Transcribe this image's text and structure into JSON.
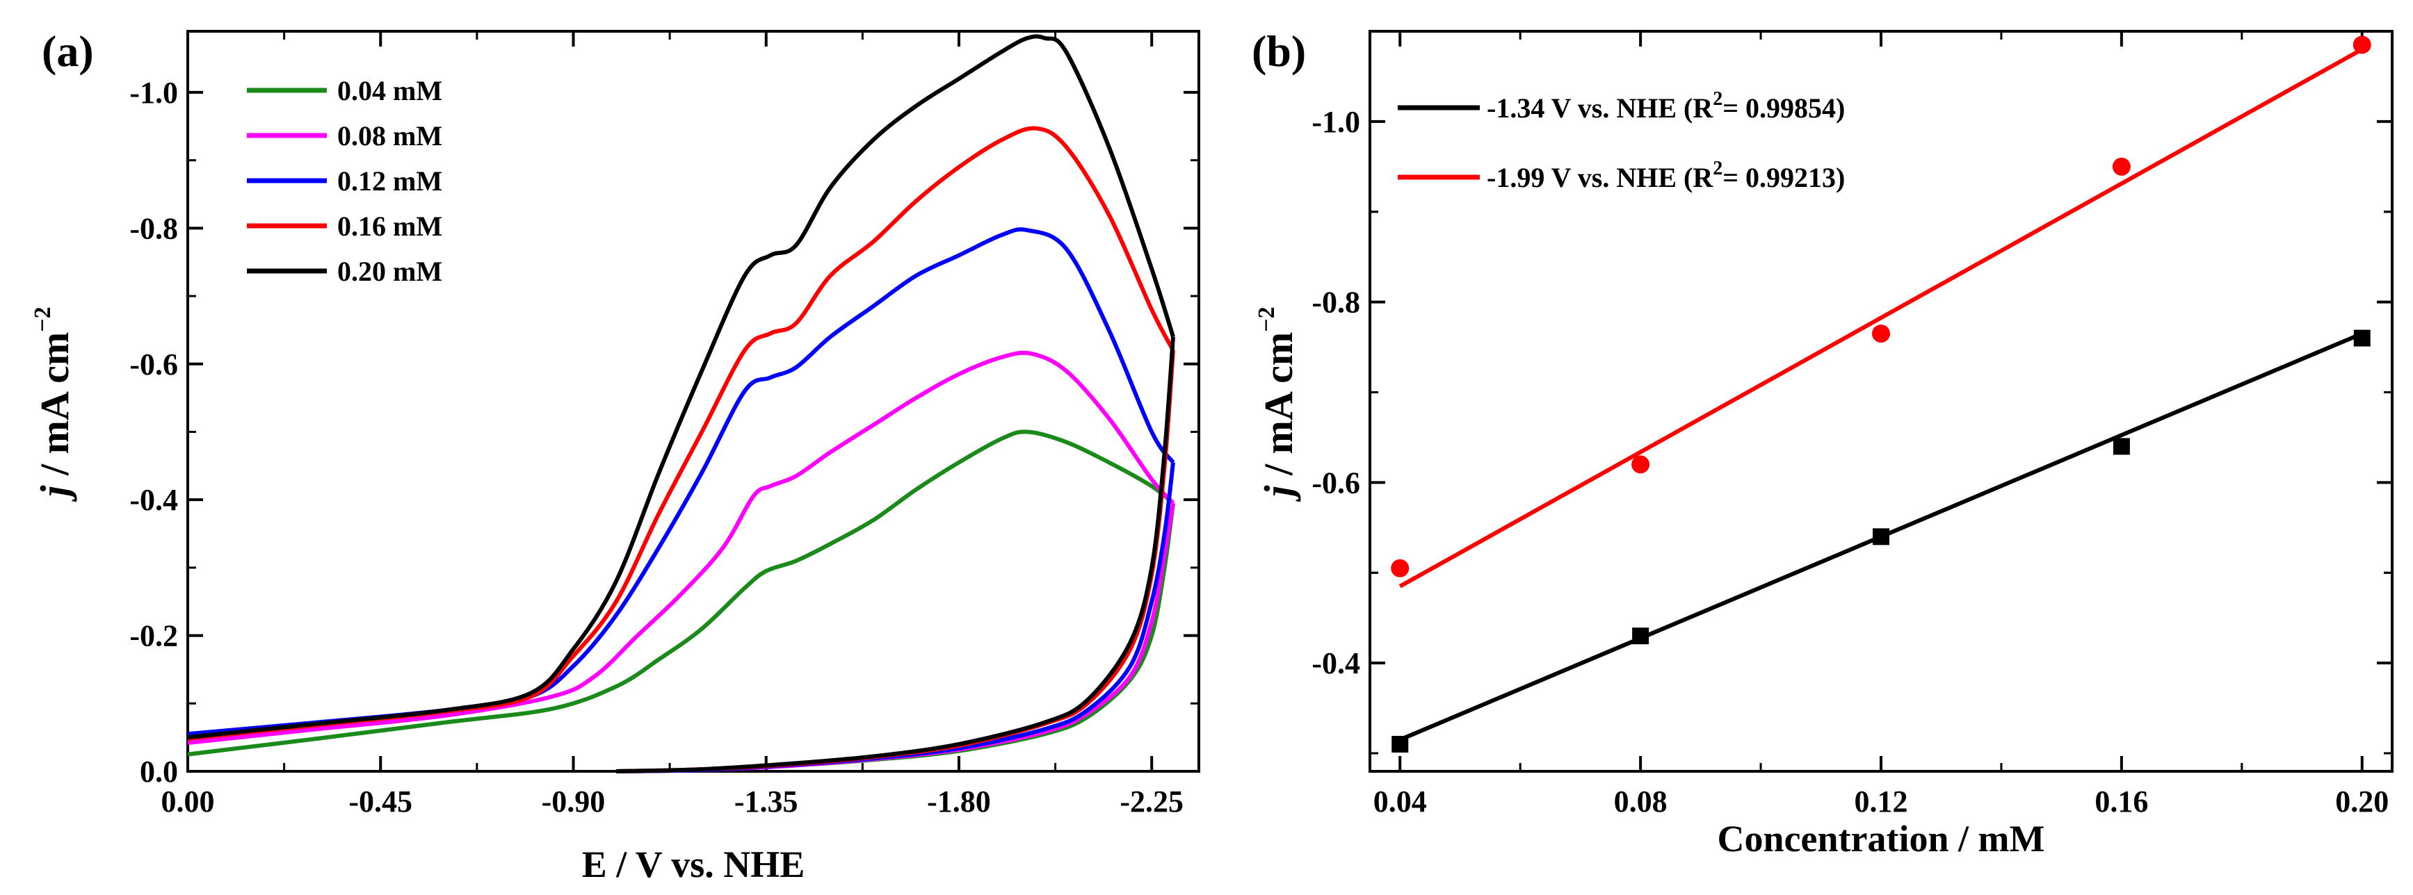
{
  "chart_data": [
    {
      "type": "line",
      "panel_label": "(a)",
      "xlabel": "E / V vs. NHE",
      "ylabel": {
        "italic": "j",
        "rest": " / mA cm",
        "sup": "−2"
      },
      "xlim": [
        0.0,
        -2.36
      ],
      "ylim": [
        0.0,
        -1.09
      ],
      "x_ticks": [
        "0.00",
        "-0.45",
        "-0.90",
        "-1.35",
        "-1.80",
        "-2.25"
      ],
      "y_ticks": [
        "0.0",
        "-0.2",
        "-0.4",
        "-0.6",
        "-0.8",
        "-1.0"
      ],
      "legend_position": "top-left",
      "series": [
        {
          "name": "0.04 mM",
          "color": "#1a8a1a",
          "forward": [
            [
              0,
              -0.025
            ],
            [
              -0.3,
              -0.048
            ],
            [
              -0.6,
              -0.072
            ],
            [
              -0.85,
              -0.092
            ],
            [
              -1.0,
              -0.125
            ],
            [
              -1.1,
              -0.165
            ],
            [
              -1.2,
              -0.21
            ],
            [
              -1.3,
              -0.27
            ],
            [
              -1.35,
              -0.295
            ],
            [
              -1.42,
              -0.31
            ],
            [
              -1.5,
              -0.335
            ],
            [
              -1.6,
              -0.37
            ],
            [
              -1.7,
              -0.415
            ],
            [
              -1.8,
              -0.455
            ],
            [
              -1.9,
              -0.49
            ],
            [
              -1.96,
              -0.5
            ],
            [
              -2.05,
              -0.485
            ],
            [
              -2.15,
              -0.455
            ],
            [
              -2.25,
              -0.42
            ],
            [
              -2.3,
              -0.395
            ]
          ],
          "reverse": [
            [
              -2.3,
              -0.395
            ],
            [
              -2.28,
              -0.3
            ],
            [
              -2.25,
              -0.2
            ],
            [
              -2.2,
              -0.135
            ],
            [
              -2.1,
              -0.08
            ],
            [
              -2.0,
              -0.055
            ],
            [
              -1.8,
              -0.03
            ],
            [
              -1.6,
              -0.017
            ],
            [
              -1.4,
              -0.008
            ],
            [
              -1.2,
              -0.002
            ],
            [
              -1.0,
              0.0
            ]
          ]
        },
        {
          "name": "0.08 mM",
          "color": "#ff00ff",
          "forward": [
            [
              0,
              -0.042
            ],
            [
              -0.3,
              -0.062
            ],
            [
              -0.6,
              -0.082
            ],
            [
              -0.85,
              -0.11
            ],
            [
              -0.95,
              -0.14
            ],
            [
              -1.05,
              -0.2
            ],
            [
              -1.15,
              -0.26
            ],
            [
              -1.25,
              -0.33
            ],
            [
              -1.32,
              -0.405
            ],
            [
              -1.36,
              -0.42
            ],
            [
              -1.42,
              -0.435
            ],
            [
              -1.5,
              -0.47
            ],
            [
              -1.6,
              -0.51
            ],
            [
              -1.7,
              -0.55
            ],
            [
              -1.8,
              -0.585
            ],
            [
              -1.9,
              -0.61
            ],
            [
              -1.97,
              -0.615
            ],
            [
              -2.05,
              -0.59
            ],
            [
              -2.15,
              -0.52
            ],
            [
              -2.25,
              -0.43
            ],
            [
              -2.3,
              -0.395
            ]
          ],
          "reverse": [
            [
              -2.3,
              -0.395
            ],
            [
              -2.28,
              -0.32
            ],
            [
              -2.25,
              -0.22
            ],
            [
              -2.2,
              -0.14
            ],
            [
              -2.1,
              -0.085
            ],
            [
              -2.0,
              -0.058
            ],
            [
              -1.8,
              -0.032
            ],
            [
              -1.6,
              -0.018
            ],
            [
              -1.4,
              -0.008
            ],
            [
              -1.2,
              -0.002
            ],
            [
              -1.0,
              0.0
            ]
          ]
        },
        {
          "name": "0.12 mM",
          "color": "#0000ff",
          "forward": [
            [
              0,
              -0.055
            ],
            [
              -0.3,
              -0.072
            ],
            [
              -0.6,
              -0.09
            ],
            [
              -0.8,
              -0.11
            ],
            [
              -0.9,
              -0.155
            ],
            [
              -1.0,
              -0.23
            ],
            [
              -1.1,
              -0.33
            ],
            [
              -1.2,
              -0.44
            ],
            [
              -1.3,
              -0.56
            ],
            [
              -1.36,
              -0.58
            ],
            [
              -1.42,
              -0.595
            ],
            [
              -1.5,
              -0.64
            ],
            [
              -1.6,
              -0.685
            ],
            [
              -1.7,
              -0.73
            ],
            [
              -1.8,
              -0.76
            ],
            [
              -1.9,
              -0.79
            ],
            [
              -1.96,
              -0.797
            ],
            [
              -2.05,
              -0.77
            ],
            [
              -2.15,
              -0.65
            ],
            [
              -2.25,
              -0.5
            ],
            [
              -2.3,
              -0.455
            ]
          ],
          "reverse": [
            [
              -2.3,
              -0.455
            ],
            [
              -2.28,
              -0.35
            ],
            [
              -2.25,
              -0.25
            ],
            [
              -2.2,
              -0.155
            ],
            [
              -2.1,
              -0.09
            ],
            [
              -2.0,
              -0.062
            ],
            [
              -1.8,
              -0.034
            ],
            [
              -1.6,
              -0.019
            ],
            [
              -1.4,
              -0.009
            ],
            [
              -1.2,
              -0.002
            ],
            [
              -1.0,
              0.0
            ]
          ]
        },
        {
          "name": "0.16 mM",
          "color": "#ff0000",
          "forward": [
            [
              0,
              -0.048
            ],
            [
              -0.3,
              -0.068
            ],
            [
              -0.6,
              -0.088
            ],
            [
              -0.8,
              -0.11
            ],
            [
              -0.9,
              -0.17
            ],
            [
              -1.0,
              -0.25
            ],
            [
              -1.1,
              -0.38
            ],
            [
              -1.2,
              -0.5
            ],
            [
              -1.3,
              -0.62
            ],
            [
              -1.36,
              -0.645
            ],
            [
              -1.42,
              -0.66
            ],
            [
              -1.5,
              -0.73
            ],
            [
              -1.6,
              -0.78
            ],
            [
              -1.7,
              -0.84
            ],
            [
              -1.8,
              -0.89
            ],
            [
              -1.9,
              -0.93
            ],
            [
              -1.98,
              -0.947
            ],
            [
              -2.05,
              -0.92
            ],
            [
              -2.15,
              -0.82
            ],
            [
              -2.25,
              -0.68
            ],
            [
              -2.3,
              -0.62
            ]
          ],
          "reverse": [
            [
              -2.3,
              -0.62
            ],
            [
              -2.28,
              -0.45
            ],
            [
              -2.25,
              -0.29
            ],
            [
              -2.2,
              -0.18
            ],
            [
              -2.1,
              -0.1
            ],
            [
              -2.0,
              -0.07
            ],
            [
              -1.8,
              -0.038
            ],
            [
              -1.6,
              -0.021
            ],
            [
              -1.4,
              -0.01
            ],
            [
              -1.2,
              -0.003
            ],
            [
              -1.0,
              0.0
            ]
          ]
        },
        {
          "name": "0.20 mM",
          "color": "#000000",
          "forward": [
            [
              0,
              -0.05
            ],
            [
              -0.3,
              -0.07
            ],
            [
              -0.6,
              -0.09
            ],
            [
              -0.8,
              -0.115
            ],
            [
              -0.9,
              -0.18
            ],
            [
              -1.0,
              -0.28
            ],
            [
              -1.1,
              -0.44
            ],
            [
              -1.2,
              -0.59
            ],
            [
              -1.3,
              -0.73
            ],
            [
              -1.36,
              -0.76
            ],
            [
              -1.42,
              -0.775
            ],
            [
              -1.5,
              -0.86
            ],
            [
              -1.6,
              -0.93
            ],
            [
              -1.7,
              -0.98
            ],
            [
              -1.8,
              -1.02
            ],
            [
              -1.9,
              -1.06
            ],
            [
              -1.96,
              -1.08
            ],
            [
              -2.0,
              -1.08
            ],
            [
              -2.05,
              -1.06
            ],
            [
              -2.15,
              -0.92
            ],
            [
              -2.25,
              -0.74
            ],
            [
              -2.3,
              -0.64
            ]
          ],
          "reverse": [
            [
              -2.3,
              -0.64
            ],
            [
              -2.28,
              -0.47
            ],
            [
              -2.25,
              -0.3
            ],
            [
              -2.2,
              -0.19
            ],
            [
              -2.1,
              -0.105
            ],
            [
              -2.0,
              -0.072
            ],
            [
              -1.8,
              -0.04
            ],
            [
              -1.6,
              -0.022
            ],
            [
              -1.4,
              -0.011
            ],
            [
              -1.2,
              -0.003
            ],
            [
              -1.0,
              0.0
            ]
          ]
        }
      ]
    },
    {
      "type": "scatter",
      "panel_label": "(b)",
      "xlabel": "Concentration / mM",
      "ylabel": {
        "italic": "j",
        "rest": " / mA cm",
        "sup": "−2"
      },
      "xlim": [
        0.035,
        0.205
      ],
      "ylim": [
        -0.28,
        -1.1
      ],
      "x_ticks": [
        "0.04",
        "0.08",
        "0.12",
        "0.16",
        "0.20"
      ],
      "y_ticks": [
        "-0.4",
        "-0.6",
        "-0.8",
        "-1.0"
      ],
      "legend_position": "top-left",
      "series": [
        {
          "name_text": "-1.34 V vs. NHE (R",
          "name_sup": "2",
          "name_tail": "= 0.99854)",
          "color": "#000000",
          "marker": "square",
          "x": [
            0.04,
            0.08,
            0.12,
            0.16,
            0.2
          ],
          "y": [
            -0.31,
            -0.43,
            -0.54,
            -0.64,
            -0.76
          ],
          "fit": {
            "x": [
              0.04,
              0.2
            ],
            "y": [
              -0.315,
              -0.765
            ]
          }
        },
        {
          "name_text": "-1.99 V vs. NHE (R",
          "name_sup": "2",
          "name_tail": "= 0.99213)",
          "color": "#ff0000",
          "marker": "circle",
          "x": [
            0.04,
            0.08,
            0.12,
            0.16,
            0.2
          ],
          "y": [
            -0.505,
            -0.62,
            -0.765,
            -0.95,
            -1.085
          ],
          "fit": {
            "x": [
              0.04,
              0.2
            ],
            "y": [
              -0.485,
              -1.08
            ]
          }
        }
      ]
    }
  ]
}
